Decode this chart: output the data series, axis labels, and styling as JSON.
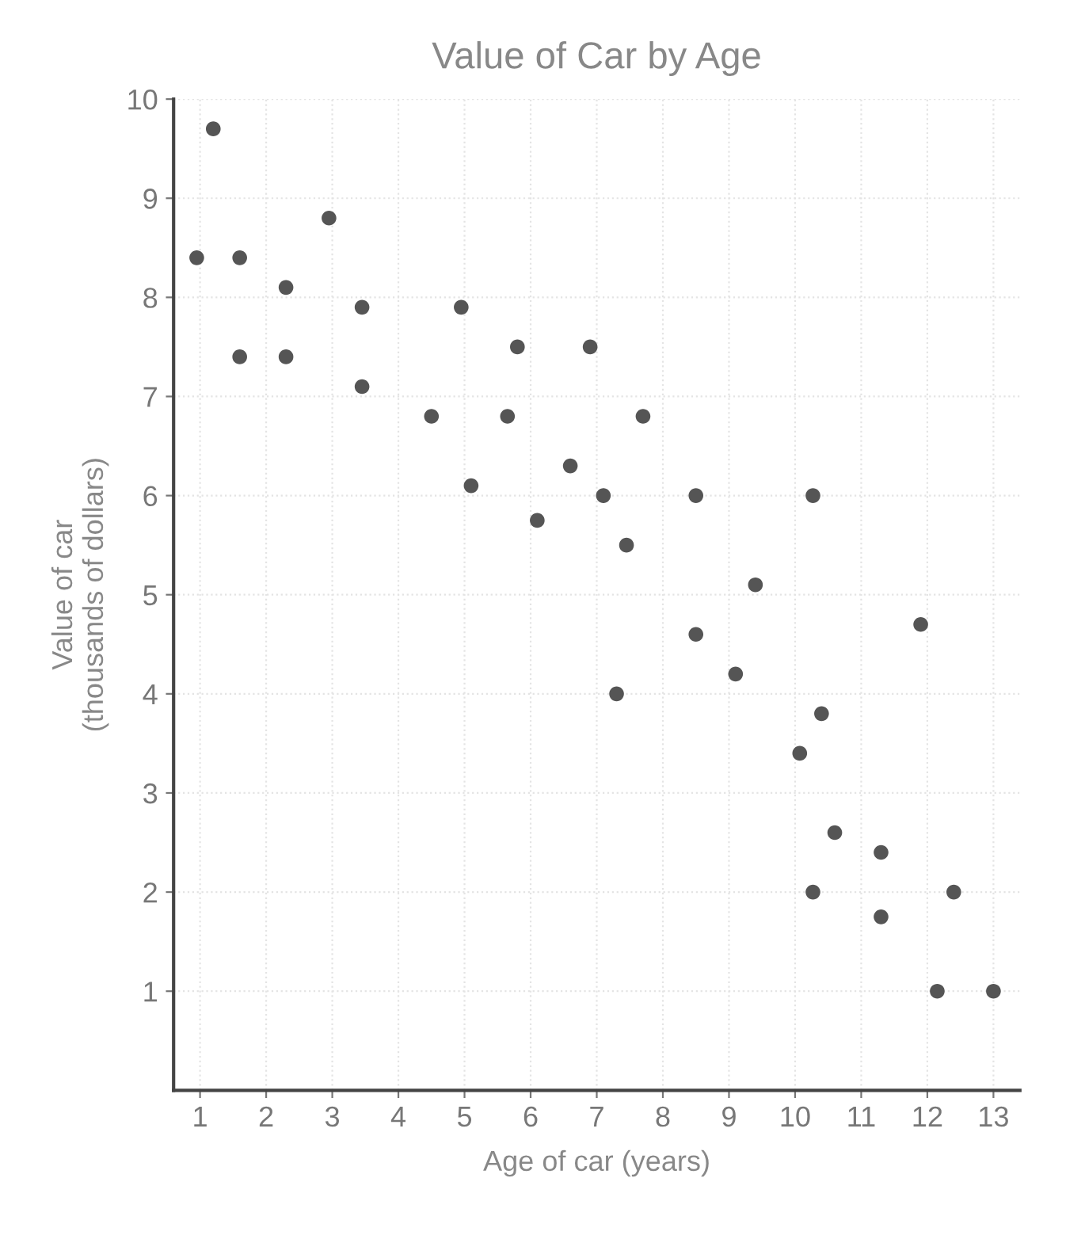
{
  "chart_data": {
    "type": "scatter",
    "title": "Value of Car by Age",
    "xlabel": "Age of car (years)",
    "ylabel": "Value of car\n(thousands of dollars)",
    "x": [
      13.0,
      12.4,
      12.15,
      11.9,
      11.3,
      11.3,
      10.6,
      10.4,
      10.27,
      10.27,
      10.07,
      9.4,
      9.1,
      8.5,
      8.5,
      7.7,
      7.45,
      7.3,
      7.1,
      6.9,
      6.6,
      6.1,
      5.8,
      5.65,
      5.1,
      4.95,
      4.5,
      3.45,
      3.45,
      2.95,
      2.3,
      2.3,
      1.6,
      1.6,
      1.2,
      0.95
    ],
    "values": [
      1.0,
      2.0,
      1.0,
      4.7,
      2.4,
      1.75,
      2.6,
      3.8,
      6.0,
      2.0,
      3.4,
      5.1,
      4.2,
      6.0,
      4.6,
      6.8,
      5.5,
      4.0,
      6.0,
      7.5,
      6.3,
      5.75,
      7.5,
      6.8,
      6.1,
      7.9,
      6.8,
      7.9,
      7.1,
      8.8,
      8.1,
      7.4,
      8.4,
      7.4,
      9.7,
      8.4
    ],
    "color": "#555555",
    "marker": "circle",
    "grid": true,
    "xlim": [
      0.6,
      13.4
    ],
    "xticks": [
      1,
      2,
      3,
      4,
      5,
      6,
      7,
      8,
      9,
      10,
      11,
      12,
      13
    ],
    "ylim": [
      0,
      10
    ],
    "yticks": [
      1,
      2,
      3,
      4,
      5,
      6,
      7,
      8,
      9,
      10
    ]
  }
}
